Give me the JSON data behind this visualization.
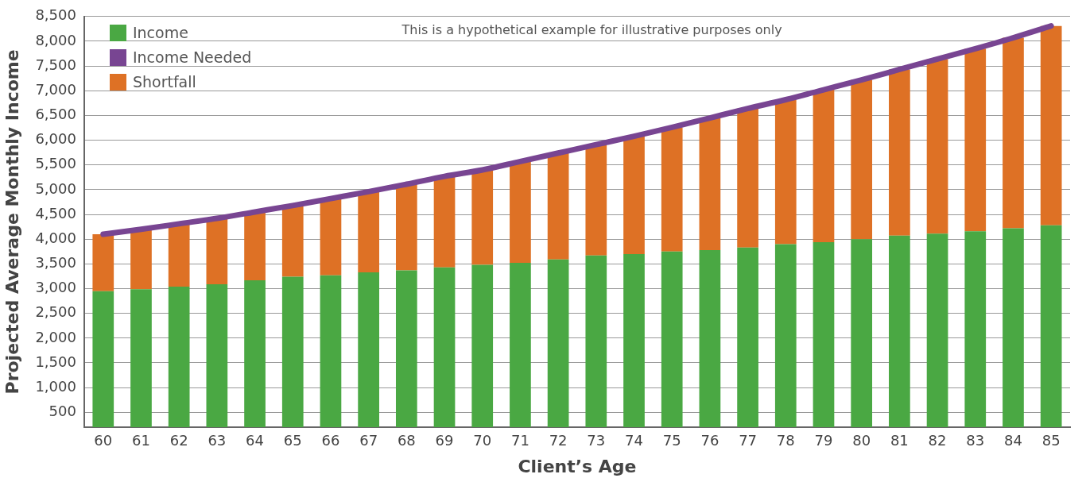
{
  "chart_data": {
    "type": "bar",
    "stacked": true,
    "xlabel": "Client’s Age",
    "ylabel": "Projected Average Monthly Income",
    "annotations": [
      "This is a hypothetical example for illustrative purposes only"
    ],
    "categories": [
      "60",
      "61",
      "62",
      "63",
      "64",
      "65",
      "66",
      "67",
      "68",
      "69",
      "70",
      "71",
      "72",
      "73",
      "74",
      "75",
      "76",
      "77",
      "78",
      "79",
      "80",
      "81",
      "82",
      "83",
      "84",
      "85"
    ],
    "series": [
      {
        "name": "Income",
        "color": "#4aa843",
        "values": [
          2950,
          2990,
          3040,
          3090,
          3170,
          3240,
          3270,
          3330,
          3370,
          3430,
          3480,
          3520,
          3590,
          3670,
          3700,
          3750,
          3780,
          3830,
          3900,
          3940,
          4000,
          4070,
          4110,
          4160,
          4220,
          4280
        ]
      },
      {
        "name": "Income Needed",
        "type": "line",
        "color": "#784592",
        "values": [
          4100,
          4200,
          4310,
          4420,
          4550,
          4680,
          4820,
          4960,
          5110,
          5270,
          5400,
          5570,
          5740,
          5910,
          6080,
          6260,
          6450,
          6640,
          6820,
          7020,
          7220,
          7430,
          7640,
          7850,
          8070,
          8310
        ]
      },
      {
        "name": "Shortfall",
        "color": "#de7125",
        "values": [
          1150,
          1210,
          1270,
          1330,
          1380,
          1440,
          1550,
          1630,
          1740,
          1840,
          1920,
          2050,
          2150,
          2240,
          2380,
          2510,
          2670,
          2810,
          2920,
          3080,
          3220,
          3360,
          3530,
          3690,
          3850,
          4030
        ]
      }
    ],
    "ylim": [
      200,
      8500
    ],
    "yticks": [
      {
        "value": 500,
        "label": "500"
      },
      {
        "value": 1000,
        "label": "1,000"
      },
      {
        "value": 1500,
        "label": "1,500"
      },
      {
        "value": 2000,
        "label": "2,000"
      },
      {
        "value": 2500,
        "label": "2,500"
      },
      {
        "value": 3000,
        "label": "3,000"
      },
      {
        "value": 3500,
        "label": "3,500"
      },
      {
        "value": 4000,
        "label": "4,000"
      },
      {
        "value": 4500,
        "label": "4,500"
      },
      {
        "value": 5000,
        "label": "5,000"
      },
      {
        "value": 5500,
        "label": "5,500"
      },
      {
        "value": 6000,
        "label": "6,000"
      },
      {
        "value": 6500,
        "label": "6,500"
      },
      {
        "value": 7000,
        "label": "7,000"
      },
      {
        "value": 7500,
        "label": "7,500"
      },
      {
        "value": 8000,
        "label": "8,000"
      },
      {
        "value": 8500,
        "label": "8,500"
      }
    ],
    "grid": "y",
    "legend": "top left",
    "marker": "none",
    "line_style": "solid"
  }
}
